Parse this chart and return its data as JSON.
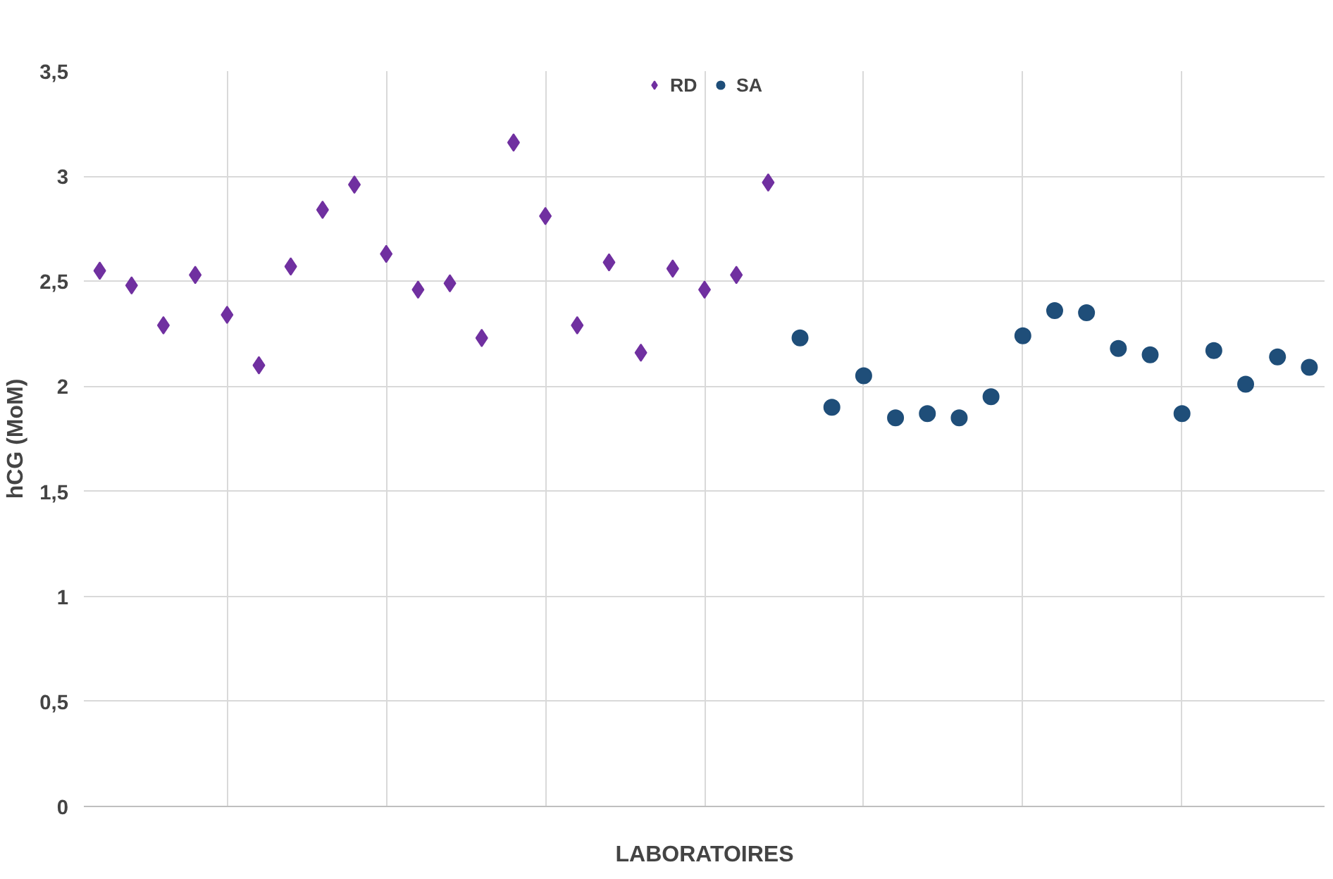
{
  "chart_data": {
    "type": "scatter",
    "xlabel": "LABORATOIRES",
    "ylabel": "hCG (MoM)",
    "categories": [
      null,
      null,
      null,
      null,
      null,
      null,
      null,
      null,
      null,
      null,
      null,
      null,
      null,
      null,
      null,
      null,
      null,
      null,
      null,
      null,
      null,
      null,
      null,
      null,
      null,
      null,
      null,
      null,
      null,
      null,
      null,
      null,
      null,
      null,
      null,
      null,
      null,
      null,
      null
    ],
    "series": [
      {
        "name": "RD",
        "color": "#7030a0",
        "marker": "diamond",
        "values": [
          2.55,
          2.48,
          2.29,
          2.53,
          2.34,
          2.1,
          2.57,
          2.84,
          2.96,
          2.63,
          2.46,
          2.49,
          2.23,
          3.16,
          2.81,
          2.29,
          2.59,
          2.16,
          2.56,
          2.46,
          2.53,
          2.97,
          null,
          null,
          null,
          null,
          null,
          null,
          null,
          null,
          null,
          null,
          null,
          null,
          null,
          null,
          null,
          null,
          null
        ]
      },
      {
        "name": "SA",
        "color": "#1f4e79",
        "marker": "circle",
        "values": [
          null,
          null,
          null,
          null,
          null,
          null,
          null,
          null,
          null,
          null,
          null,
          null,
          null,
          null,
          null,
          null,
          null,
          null,
          null,
          null,
          null,
          null,
          2.23,
          1.9,
          2.05,
          1.85,
          1.87,
          1.85,
          1.95,
          2.24,
          2.36,
          2.35,
          2.18,
          2.15,
          1.87,
          2.17,
          2.01,
          2.14,
          2.09
        ]
      }
    ],
    "ylim": [
      0,
      3.5
    ],
    "yticks": [
      {
        "value": 0,
        "label": "0"
      },
      {
        "value": 0.5,
        "label": "0,5"
      },
      {
        "value": 1,
        "label": "1"
      },
      {
        "value": 1.5,
        "label": "1,5"
      },
      {
        "value": 2,
        "label": "2"
      },
      {
        "value": 2.5,
        "label": "2,5"
      },
      {
        "value": 3,
        "label": "3"
      },
      {
        "value": 3.5,
        "label": "3,5"
      }
    ],
    "grid": true,
    "legend": "top"
  }
}
